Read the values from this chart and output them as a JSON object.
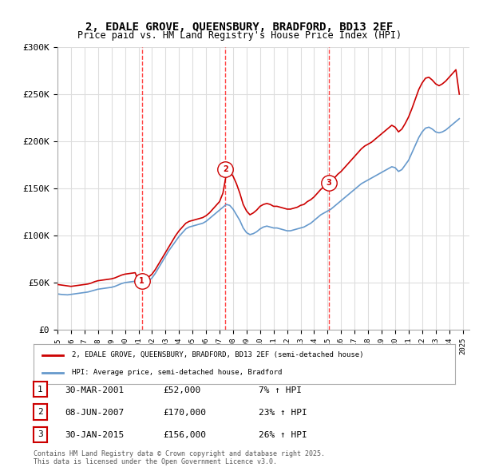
{
  "title_line1": "2, EDALE GROVE, QUEENSBURY, BRADFORD, BD13 2EF",
  "title_line2": "Price paid vs. HM Land Registry's House Price Index (HPI)",
  "ylabel_ticks": [
    "£0",
    "£50K",
    "£100K",
    "£150K",
    "£200K",
    "£250K",
    "£300K"
  ],
  "ytick_vals": [
    0,
    50000,
    100000,
    150000,
    200000,
    250000,
    300000
  ],
  "ylim": [
    0,
    300000
  ],
  "xlim_start": 1995,
  "xlim_end": 2025.5,
  "transactions": [
    {
      "num": 1,
      "date_x": 2001.25,
      "price": 52000,
      "date_str": "30-MAR-2001",
      "price_str": "£52,000",
      "hpi_pct": "7%"
    },
    {
      "num": 2,
      "date_x": 2007.44,
      "price": 170000,
      "date_str": "08-JUN-2007",
      "price_str": "£170,000",
      "hpi_pct": "23%"
    },
    {
      "num": 3,
      "date_x": 2015.08,
      "price": 156000,
      "date_str": "30-JAN-2015",
      "price_str": "£156,000",
      "hpi_pct": "26%"
    }
  ],
  "red_line_color": "#cc0000",
  "blue_line_color": "#6699cc",
  "vline_color": "#ff4444",
  "background_color": "#ffffff",
  "grid_color": "#dddddd",
  "legend_box_color": "#cc0000",
  "legend_label_red": "2, EDALE GROVE, QUEENSBURY, BRADFORD, BD13 2EF (semi-detached house)",
  "legend_label_blue": "HPI: Average price, semi-detached house, Bradford",
  "footer": "Contains HM Land Registry data © Crown copyright and database right 2025.\nThis data is licensed under the Open Government Licence v3.0.",
  "hpi_data": {
    "years": [
      1995.0,
      1995.25,
      1995.5,
      1995.75,
      1996.0,
      1996.25,
      1996.5,
      1996.75,
      1997.0,
      1997.25,
      1997.5,
      1997.75,
      1998.0,
      1998.25,
      1998.5,
      1998.75,
      1999.0,
      1999.25,
      1999.5,
      1999.75,
      2000.0,
      2000.25,
      2000.5,
      2000.75,
      2001.0,
      2001.25,
      2001.5,
      2001.75,
      2002.0,
      2002.25,
      2002.5,
      2002.75,
      2003.0,
      2003.25,
      2003.5,
      2003.75,
      2004.0,
      2004.25,
      2004.5,
      2004.75,
      2005.0,
      2005.25,
      2005.5,
      2005.75,
      2006.0,
      2006.25,
      2006.5,
      2006.75,
      2007.0,
      2007.25,
      2007.5,
      2007.75,
      2008.0,
      2008.25,
      2008.5,
      2008.75,
      2009.0,
      2009.25,
      2009.5,
      2009.75,
      2010.0,
      2010.25,
      2010.5,
      2010.75,
      2011.0,
      2011.25,
      2011.5,
      2011.75,
      2012.0,
      2012.25,
      2012.5,
      2012.75,
      2013.0,
      2013.25,
      2013.5,
      2013.75,
      2014.0,
      2014.25,
      2014.5,
      2014.75,
      2015.0,
      2015.25,
      2015.5,
      2015.75,
      2016.0,
      2016.25,
      2016.5,
      2016.75,
      2017.0,
      2017.25,
      2017.5,
      2017.75,
      2018.0,
      2018.25,
      2018.5,
      2018.75,
      2019.0,
      2019.25,
      2019.5,
      2019.75,
      2020.0,
      2020.25,
      2020.5,
      2020.75,
      2021.0,
      2021.25,
      2021.5,
      2021.75,
      2022.0,
      2022.25,
      2022.5,
      2022.75,
      2023.0,
      2023.25,
      2023.5,
      2023.75,
      2024.0,
      2024.25,
      2024.5,
      2024.75
    ],
    "hpi_values": [
      38000,
      37500,
      37200,
      37000,
      37500,
      38000,
      38500,
      39000,
      39500,
      40000,
      41000,
      42000,
      43000,
      43500,
      44000,
      44500,
      45000,
      46000,
      47500,
      49000,
      50000,
      50500,
      51000,
      51500,
      48000,
      48500,
      50000,
      52000,
      55000,
      60000,
      66000,
      72000,
      78000,
      84000,
      89000,
      94000,
      99000,
      103000,
      107000,
      109000,
      110000,
      111000,
      112000,
      113000,
      115000,
      118000,
      121000,
      124000,
      127000,
      130000,
      133000,
      132000,
      128000,
      122000,
      116000,
      108000,
      103000,
      101000,
      102000,
      104000,
      107000,
      109000,
      110000,
      109000,
      108000,
      108000,
      107000,
      106000,
      105000,
      105000,
      106000,
      107000,
      108000,
      109000,
      111000,
      113000,
      116000,
      119000,
      122000,
      124000,
      126000,
      128000,
      131000,
      134000,
      137000,
      140000,
      143000,
      146000,
      149000,
      152000,
      155000,
      157000,
      159000,
      161000,
      163000,
      165000,
      167000,
      169000,
      171000,
      173000,
      172000,
      168000,
      170000,
      175000,
      180000,
      188000,
      196000,
      204000,
      210000,
      214000,
      215000,
      213000,
      210000,
      209000,
      210000,
      212000,
      215000,
      218000,
      221000,
      224000
    ],
    "red_values": [
      48000,
      47500,
      47000,
      46500,
      46000,
      46500,
      47000,
      47500,
      48000,
      48500,
      49500,
      51000,
      52000,
      52500,
      53000,
      53500,
      54000,
      55000,
      56500,
      58000,
      59000,
      59500,
      60000,
      60500,
      52000,
      52500,
      54000,
      56000,
      59000,
      64000,
      70000,
      76000,
      82000,
      88000,
      94000,
      100000,
      105000,
      109000,
      113000,
      115000,
      116000,
      117000,
      118000,
      119000,
      121000,
      124000,
      128000,
      132000,
      136000,
      145000,
      165000,
      168000,
      163000,
      155000,
      145000,
      133000,
      126000,
      122000,
      124000,
      127000,
      131000,
      133000,
      134000,
      133000,
      131000,
      131000,
      130000,
      129000,
      128000,
      128000,
      129000,
      130000,
      132000,
      133000,
      136000,
      138000,
      141000,
      145000,
      149000,
      152000,
      156000,
      158000,
      161000,
      165000,
      168000,
      172000,
      176000,
      180000,
      184000,
      188000,
      192000,
      195000,
      197000,
      199000,
      202000,
      205000,
      208000,
      211000,
      214000,
      217000,
      215000,
      210000,
      213000,
      219000,
      226000,
      235000,
      245000,
      255000,
      262000,
      267000,
      268000,
      265000,
      261000,
      259000,
      261000,
      264000,
      268000,
      272000,
      276000,
      250000
    ]
  }
}
